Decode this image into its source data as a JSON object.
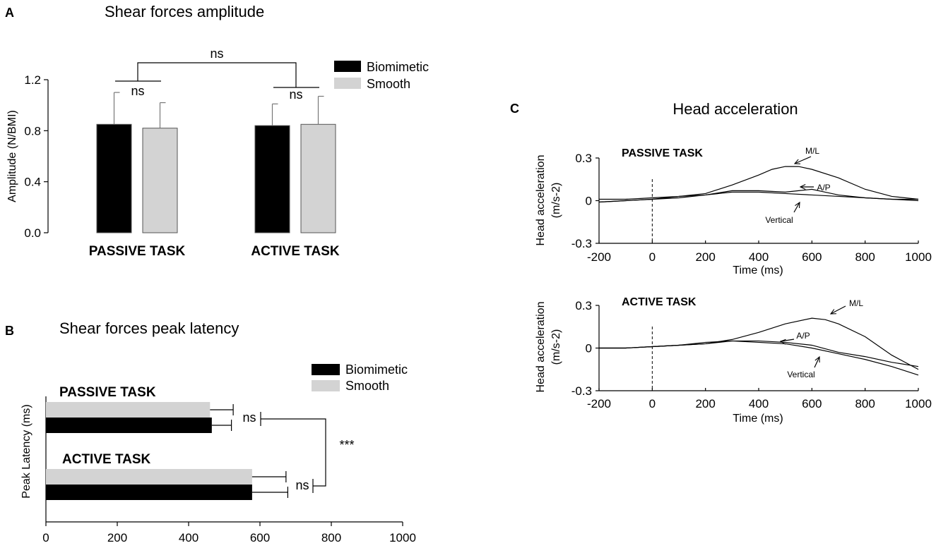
{
  "chart_data": [
    {
      "panel": "A",
      "type": "bar",
      "title": "Shear forces amplitude",
      "ylabel": "Amplitude (N/BMI)",
      "ylim": [
        0,
        1.2
      ],
      "yticks": [
        "0.0",
        "0.4",
        "0.8",
        "1.2"
      ],
      "categories": [
        "PASSIVE TASK",
        "ACTIVE TASK"
      ],
      "series": [
        {
          "name": "Biomimetic",
          "color": "#000000",
          "values": [
            0.85,
            0.84
          ],
          "errors": [
            0.25,
            0.17
          ]
        },
        {
          "name": "Smooth",
          "color": "#d3d3d3",
          "values": [
            0.82,
            0.85
          ],
          "errors": [
            0.2,
            0.22
          ]
        }
      ],
      "annotations": {
        "within_passive": "ns",
        "within_active": "ns",
        "between": "ns"
      }
    },
    {
      "panel": "B",
      "type": "bar",
      "orientation": "horizontal",
      "title": "Shear forces peak latency",
      "ylabel": "Peak Latency (ms)",
      "xlim": [
        0,
        1000
      ],
      "xticks": [
        "0",
        "200",
        "400",
        "600",
        "800",
        "1000"
      ],
      "categories": [
        "PASSIVE TASK",
        "ACTIVE TASK"
      ],
      "series": [
        {
          "name": "Biomimetic",
          "color": "#000000",
          "values": [
            465,
            578
          ],
          "errors": [
            55,
            100
          ]
        },
        {
          "name": "Smooth",
          "color": "#d3d3d3",
          "values": [
            460,
            578
          ],
          "errors": [
            65,
            95
          ]
        }
      ],
      "annotations": {
        "within_passive": "ns",
        "within_active": "ns",
        "between": "***"
      }
    },
    {
      "panel": "C",
      "type": "line",
      "title": "Head acceleration",
      "xlabel": "Time (ms)",
      "ylabel": "Head acceleration (m/s-2)",
      "xlim": [
        -200,
        1000
      ],
      "ylim": [
        -0.3,
        0.3
      ],
      "xticks": [
        "-200",
        "0",
        "200",
        "400",
        "600",
        "800",
        "1000"
      ],
      "yticks": [
        "0.3",
        "0",
        "-0.3"
      ],
      "subplots": [
        {
          "task": "PASSIVE TASK",
          "series": [
            {
              "name": "M/L",
              "x": [
                -200,
                -100,
                0,
                100,
                200,
                300,
                400,
                450,
                500,
                550,
                600,
                700,
                800,
                900,
                1000
              ],
              "y": [
                0.01,
                0.01,
                0.02,
                0.03,
                0.05,
                0.11,
                0.18,
                0.22,
                0.24,
                0.24,
                0.22,
                0.16,
                0.08,
                0.03,
                0.01
              ]
            },
            {
              "name": "A/P",
              "x": [
                -200,
                -100,
                0,
                100,
                200,
                300,
                400,
                500,
                550,
                600,
                650,
                700,
                800,
                900,
                1000
              ],
              "y": [
                -0.01,
                0.0,
                0.01,
                0.02,
                0.04,
                0.07,
                0.07,
                0.06,
                0.07,
                0.08,
                0.06,
                0.04,
                0.02,
                0.01,
                0.01
              ]
            },
            {
              "name": "Vertical",
              "x": [
                -200,
                -100,
                0,
                100,
                200,
                300,
                400,
                500,
                600,
                700,
                800,
                900,
                1000
              ],
              "y": [
                -0.01,
                0.0,
                0.01,
                0.03,
                0.04,
                0.06,
                0.06,
                0.05,
                0.04,
                0.03,
                0.02,
                0.01,
                0.0
              ]
            }
          ],
          "labels": [
            "M/L",
            "A/P",
            "Vertical"
          ]
        },
        {
          "task": "ACTIVE TASK",
          "series": [
            {
              "name": "M/L",
              "x": [
                -200,
                -100,
                0,
                100,
                200,
                300,
                400,
                500,
                600,
                650,
                700,
                800,
                900,
                1000
              ],
              "y": [
                0.0,
                0.0,
                0.01,
                0.02,
                0.03,
                0.06,
                0.11,
                0.17,
                0.21,
                0.2,
                0.17,
                0.08,
                -0.05,
                -0.15
              ]
            },
            {
              "name": "A/P",
              "x": [
                -200,
                -100,
                0,
                100,
                200,
                300,
                400,
                500,
                600,
                700,
                800,
                900,
                1000
              ],
              "y": [
                0.0,
                0.0,
                0.01,
                0.02,
                0.04,
                0.05,
                0.04,
                0.03,
                0.0,
                -0.04,
                -0.08,
                -0.13,
                -0.19
              ]
            },
            {
              "name": "Vertical",
              "x": [
                -200,
                -100,
                0,
                100,
                200,
                300,
                400,
                500,
                600,
                700,
                800,
                900,
                1000
              ],
              "y": [
                0.0,
                0.0,
                0.01,
                0.02,
                0.03,
                0.05,
                0.05,
                0.04,
                0.02,
                -0.03,
                -0.06,
                -0.1,
                -0.13
              ]
            }
          ],
          "labels": [
            "M/L",
            "A/P",
            "Vertical"
          ]
        }
      ]
    }
  ],
  "panels": {
    "a": "A",
    "b": "B",
    "c": "C"
  }
}
